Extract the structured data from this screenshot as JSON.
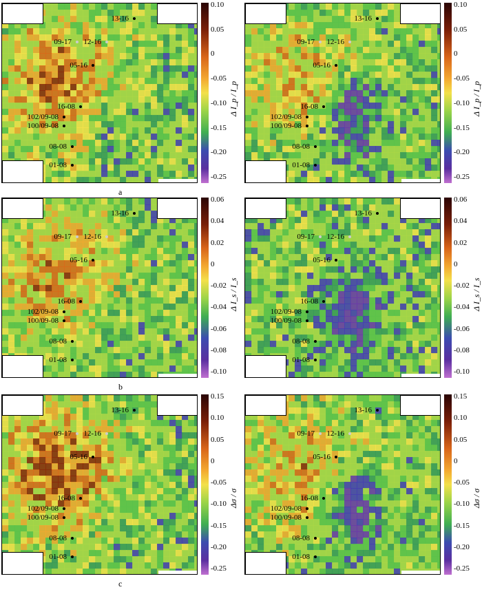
{
  "rows": [
    {
      "label": "a",
      "colorbar_title": "Δ I_p / I_p",
      "ticks": [
        "0.10",
        "0.05",
        "0",
        "-0.05",
        "-0.10",
        "-0.15",
        "-0.20",
        "-0.25"
      ]
    },
    {
      "label": "b",
      "colorbar_title": "Δ I_s / I_s",
      "ticks": [
        "0.06",
        "0.04",
        "0.02",
        "0",
        "-0.02",
        "-0.04",
        "-0.06",
        "-0.08",
        "-0.10"
      ]
    },
    {
      "label": "c",
      "colorbar_title": "Δσ / σ",
      "ticks": [
        "0.15",
        "0.10",
        "0.05",
        "0",
        "-0.05",
        "-0.10",
        "-0.15",
        "-0.20",
        "-0.25"
      ]
    }
  ],
  "wells": [
    "13-16",
    "09-17",
    "12-16",
    "05-16",
    "16-08",
    "102/09-08",
    "100/09-08",
    "08-08",
    "01-08"
  ],
  "colormap": [
    "#3a0a0a",
    "#8a2a0a",
    "#d86a1a",
    "#f0a830",
    "#f3e04a",
    "#a8d648",
    "#5cc24a",
    "#3a9a58",
    "#4540b0",
    "#6a3aa8",
    "#b060c8"
  ]
}
